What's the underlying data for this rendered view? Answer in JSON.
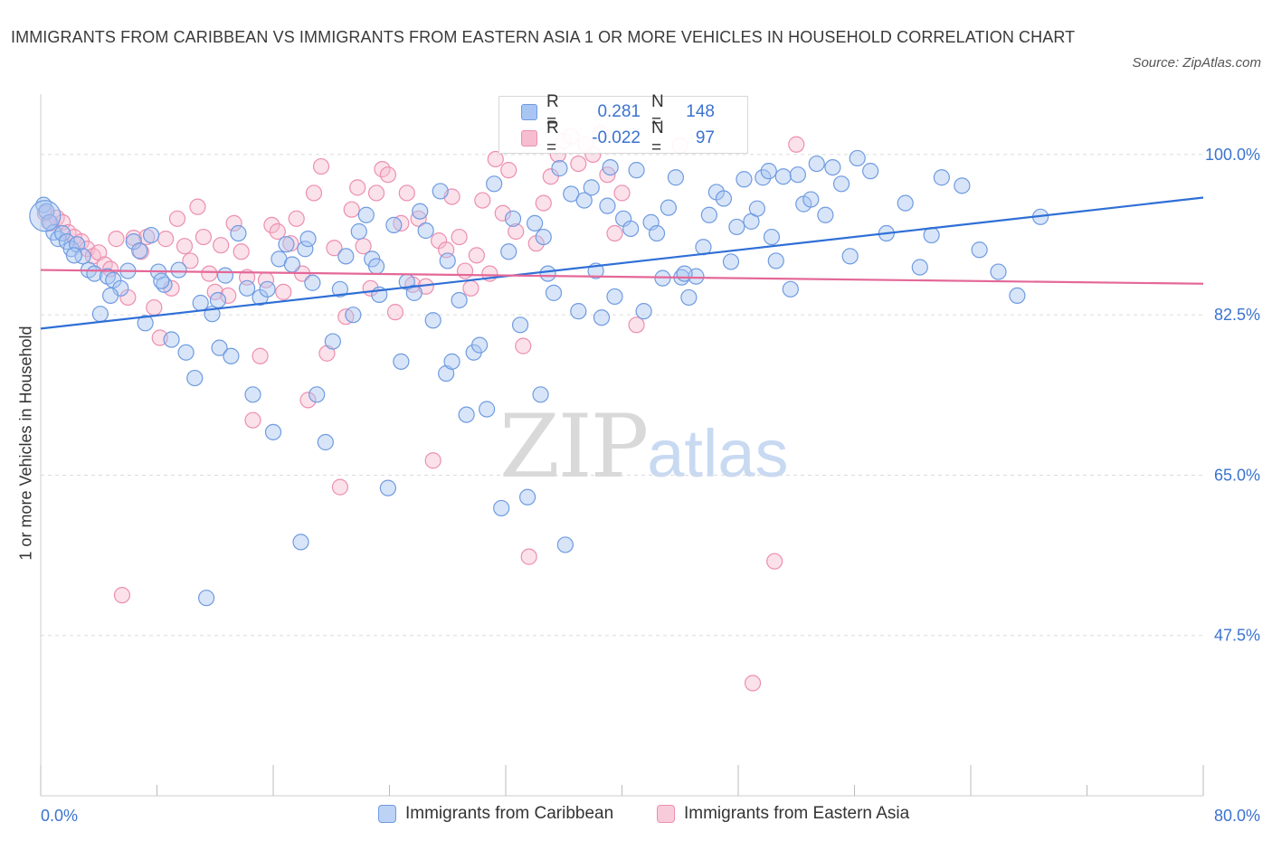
{
  "title": "IMMIGRANTS FROM CARIBBEAN VS IMMIGRANTS FROM EASTERN ASIA 1 OR MORE VEHICLES IN HOUSEHOLD CORRELATION CHART",
  "source": "Source: ZipAtlas.com",
  "watermark": {
    "zip": "ZIP",
    "atlas": "atlas"
  },
  "colors": {
    "blue_fill": "#a9c6f2",
    "blue_stroke": "#6f9be0",
    "blue_line": "#2f6fd6",
    "pink_fill": "#f6bdd0",
    "pink_stroke": "#ec8fb0",
    "pink_line": "#e46898",
    "axis_text": "#3b73cf",
    "grid": "#dcdcdc"
  },
  "legend": [
    {
      "r_label": "R =",
      "r_value": "0.281",
      "n_label": "N =",
      "n_value": "148"
    },
    {
      "r_label": "R =",
      "r_value": "-0.022",
      "n_label": "N =",
      "n_value": "97"
    }
  ],
  "chart_data": {
    "type": "scatter",
    "title": "IMMIGRANTS FROM CARIBBEAN VS IMMIGRANTS FROM EASTERN ASIA 1 OR MORE VEHICLES IN HOUSEHOLD CORRELATION CHART",
    "xlabel": "",
    "ylabel": "1 or more Vehicles in Household",
    "xlim": [
      0,
      80
    ],
    "ylim": [
      30,
      107
    ],
    "x_tick_labels": [
      "0.0%",
      "80.0%"
    ],
    "y_ticks": [
      100,
      82.5,
      65,
      47.5
    ],
    "y_tick_labels": [
      "100.0%",
      "82.5%",
      "65.0%",
      "47.5%"
    ],
    "grid": true,
    "legend_position": "bottom",
    "series": [
      {
        "name": "Immigrants from Caribbean",
        "color": "#a9c6f2",
        "trend": {
          "x": [
            0,
            80
          ],
          "y": [
            81.0,
            95.3
          ]
        },
        "points": [
          [
            0.2,
            94.5
          ],
          [
            0.4,
            93.8
          ],
          [
            0.6,
            92.6
          ],
          [
            0.9,
            91.5
          ],
          [
            1.2,
            90.8
          ],
          [
            1.5,
            91.4
          ],
          [
            1.8,
            90.5
          ],
          [
            2.1,
            89.7
          ],
          [
            2.5,
            90.2
          ],
          [
            2.9,
            88.9
          ],
          [
            3.3,
            87.4
          ],
          [
            3.7,
            87.0
          ],
          [
            4.1,
            82.6
          ],
          [
            4.6,
            86.7
          ],
          [
            5.0,
            86.3
          ],
          [
            5.5,
            85.4
          ],
          [
            6.0,
            87.3
          ],
          [
            6.4,
            90.5
          ],
          [
            6.8,
            89.5
          ],
          [
            7.2,
            81.6
          ],
          [
            7.6,
            91.2
          ],
          [
            8.1,
            87.2
          ],
          [
            8.5,
            85.8
          ],
          [
            9.0,
            79.8
          ],
          [
            9.5,
            87.4
          ],
          [
            10.0,
            78.4
          ],
          [
            10.6,
            75.6
          ],
          [
            11.0,
            83.8
          ],
          [
            11.4,
            51.6
          ],
          [
            11.8,
            82.6
          ],
          [
            12.3,
            78.9
          ],
          [
            12.7,
            86.8
          ],
          [
            13.1,
            78.0
          ],
          [
            13.6,
            91.4
          ],
          [
            14.2,
            85.4
          ],
          [
            14.6,
            73.8
          ],
          [
            15.1,
            84.4
          ],
          [
            15.6,
            85.3
          ],
          [
            16.0,
            69.7
          ],
          [
            16.4,
            88.6
          ],
          [
            16.9,
            90.2
          ],
          [
            17.3,
            88.0
          ],
          [
            17.9,
            57.7
          ],
          [
            18.2,
            89.7
          ],
          [
            18.7,
            86.0
          ],
          [
            19.0,
            73.8
          ],
          [
            19.6,
            68.6
          ],
          [
            20.1,
            79.6
          ],
          [
            20.6,
            85.3
          ],
          [
            21.0,
            88.9
          ],
          [
            21.5,
            82.5
          ],
          [
            21.9,
            91.6
          ],
          [
            22.4,
            93.4
          ],
          [
            22.8,
            88.6
          ],
          [
            23.3,
            84.7
          ],
          [
            23.9,
            63.6
          ],
          [
            24.3,
            92.3
          ],
          [
            24.8,
            77.4
          ],
          [
            25.2,
            86.1
          ],
          [
            25.7,
            84.9
          ],
          [
            26.1,
            93.8
          ],
          [
            26.5,
            91.7
          ],
          [
            27.0,
            81.9
          ],
          [
            27.5,
            96.0
          ],
          [
            27.9,
            76.1
          ],
          [
            28.3,
            77.4
          ],
          [
            28.8,
            84.1
          ],
          [
            29.3,
            71.6
          ],
          [
            29.8,
            78.4
          ],
          [
            30.2,
            79.2
          ],
          [
            30.7,
            72.2
          ],
          [
            31.2,
            96.8
          ],
          [
            31.7,
            61.4
          ],
          [
            32.2,
            89.4
          ],
          [
            32.5,
            93.0
          ],
          [
            33.0,
            81.4
          ],
          [
            33.5,
            62.6
          ],
          [
            34.0,
            92.5
          ],
          [
            34.4,
            73.8
          ],
          [
            34.9,
            87.0
          ],
          [
            35.3,
            84.9
          ],
          [
            35.7,
            98.5
          ],
          [
            36.1,
            57.4
          ],
          [
            36.5,
            95.7
          ],
          [
            37.0,
            82.9
          ],
          [
            37.4,
            95.0
          ],
          [
            37.9,
            96.4
          ],
          [
            38.2,
            87.3
          ],
          [
            38.6,
            82.2
          ],
          [
            39.0,
            94.4
          ],
          [
            39.5,
            84.5
          ],
          [
            40.1,
            93.0
          ],
          [
            40.6,
            91.9
          ],
          [
            41.0,
            98.3
          ],
          [
            41.5,
            82.9
          ],
          [
            42.0,
            92.6
          ],
          [
            42.4,
            91.4
          ],
          [
            42.8,
            86.5
          ],
          [
            43.2,
            94.2
          ],
          [
            43.7,
            97.5
          ],
          [
            44.1,
            86.6
          ],
          [
            44.6,
            84.4
          ],
          [
            45.1,
            86.7
          ],
          [
            45.6,
            89.9
          ],
          [
            46.0,
            93.4
          ],
          [
            46.5,
            95.9
          ],
          [
            47.0,
            95.2
          ],
          [
            47.5,
            88.3
          ],
          [
            47.9,
            92.1
          ],
          [
            48.4,
            97.3
          ],
          [
            48.9,
            92.7
          ],
          [
            49.3,
            94.1
          ],
          [
            49.7,
            97.5
          ],
          [
            50.1,
            98.2
          ],
          [
            50.6,
            88.4
          ],
          [
            51.1,
            97.6
          ],
          [
            51.6,
            85.3
          ],
          [
            52.1,
            97.8
          ],
          [
            52.5,
            94.6
          ],
          [
            53.0,
            95.1
          ],
          [
            53.4,
            99.0
          ],
          [
            54.0,
            93.4
          ],
          [
            54.5,
            98.6
          ],
          [
            55.1,
            96.8
          ],
          [
            55.7,
            88.9
          ],
          [
            56.2,
            99.6
          ],
          [
            57.1,
            98.2
          ],
          [
            58.2,
            91.4
          ],
          [
            59.5,
            94.7
          ],
          [
            61.3,
            91.2
          ],
          [
            62.0,
            97.5
          ],
          [
            63.4,
            96.6
          ],
          [
            64.6,
            89.6
          ],
          [
            65.9,
            87.2
          ],
          [
            67.2,
            84.6
          ],
          [
            68.8,
            93.2
          ],
          [
            60.5,
            87.7
          ],
          [
            50.3,
            91.0
          ],
          [
            44.3,
            87.0
          ],
          [
            39.2,
            98.6
          ],
          [
            34.6,
            91.0
          ],
          [
            28.0,
            88.4
          ],
          [
            23.1,
            87.8
          ],
          [
            18.4,
            90.8
          ],
          [
            12.2,
            84.1
          ],
          [
            8.3,
            86.2
          ],
          [
            4.8,
            84.6
          ],
          [
            2.3,
            89.0
          ]
        ]
      },
      {
        "name": "Immigrants from Eastern Asia",
        "color": "#f6bdd0",
        "trend": {
          "x": [
            0,
            80
          ],
          "y": [
            87.4,
            85.9
          ]
        },
        "points": [
          [
            0.3,
            93.6
          ],
          [
            0.7,
            92.5
          ],
          [
            1.1,
            93.1
          ],
          [
            1.5,
            92.6
          ],
          [
            1.9,
            91.5
          ],
          [
            2.3,
            91.0
          ],
          [
            2.8,
            90.5
          ],
          [
            3.2,
            89.7
          ],
          [
            3.6,
            88.9
          ],
          [
            4.0,
            89.3
          ],
          [
            4.4,
            88.0
          ],
          [
            4.8,
            87.5
          ],
          [
            5.2,
            90.8
          ],
          [
            5.6,
            51.9
          ],
          [
            6.0,
            84.4
          ],
          [
            6.4,
            90.9
          ],
          [
            6.9,
            89.4
          ],
          [
            7.3,
            91.0
          ],
          [
            7.8,
            83.3
          ],
          [
            8.2,
            80.0
          ],
          [
            8.6,
            90.8
          ],
          [
            9.0,
            85.4
          ],
          [
            9.4,
            93.0
          ],
          [
            9.9,
            90.0
          ],
          [
            10.3,
            88.4
          ],
          [
            10.8,
            94.3
          ],
          [
            11.2,
            91.0
          ],
          [
            11.6,
            87.0
          ],
          [
            12.0,
            85.0
          ],
          [
            12.4,
            90.1
          ],
          [
            12.9,
            84.6
          ],
          [
            13.3,
            92.5
          ],
          [
            13.8,
            89.4
          ],
          [
            14.2,
            86.6
          ],
          [
            14.6,
            71.0
          ],
          [
            15.1,
            78.0
          ],
          [
            15.5,
            86.3
          ],
          [
            15.9,
            92.3
          ],
          [
            16.3,
            91.6
          ],
          [
            16.7,
            85.0
          ],
          [
            17.2,
            90.3
          ],
          [
            17.6,
            93.0
          ],
          [
            18.0,
            87.0
          ],
          [
            18.4,
            73.2
          ],
          [
            18.8,
            95.8
          ],
          [
            19.3,
            98.7
          ],
          [
            19.7,
            78.3
          ],
          [
            20.2,
            89.8
          ],
          [
            20.6,
            63.7
          ],
          [
            21.0,
            82.3
          ],
          [
            21.4,
            94.0
          ],
          [
            21.8,
            96.4
          ],
          [
            22.2,
            90.0
          ],
          [
            22.7,
            85.4
          ],
          [
            23.1,
            95.8
          ],
          [
            23.5,
            98.4
          ],
          [
            23.9,
            97.8
          ],
          [
            24.4,
            82.8
          ],
          [
            24.8,
            92.5
          ],
          [
            25.2,
            95.8
          ],
          [
            25.6,
            85.8
          ],
          [
            26.0,
            93.0
          ],
          [
            26.5,
            85.6
          ],
          [
            27.0,
            66.6
          ],
          [
            27.4,
            90.6
          ],
          [
            27.9,
            89.6
          ],
          [
            28.3,
            95.4
          ],
          [
            28.8,
            91.0
          ],
          [
            29.2,
            87.3
          ],
          [
            29.6,
            85.4
          ],
          [
            30.0,
            89.0
          ],
          [
            30.4,
            95.0
          ],
          [
            30.9,
            87.0
          ],
          [
            31.3,
            99.5
          ],
          [
            31.8,
            93.6
          ],
          [
            32.2,
            98.3
          ],
          [
            32.7,
            91.6
          ],
          [
            33.2,
            79.1
          ],
          [
            33.6,
            56.1
          ],
          [
            34.1,
            90.3
          ],
          [
            34.6,
            94.7
          ],
          [
            35.1,
            97.6
          ],
          [
            35.6,
            100.0
          ],
          [
            36.0,
            101.5
          ],
          [
            36.5,
            102.0
          ],
          [
            37.0,
            99.0
          ],
          [
            37.5,
            101.1
          ],
          [
            38.0,
            100.0
          ],
          [
            38.5,
            102.3
          ],
          [
            39.0,
            97.8
          ],
          [
            39.5,
            91.4
          ],
          [
            40.0,
            95.8
          ],
          [
            41.0,
            81.4
          ],
          [
            44.0,
            101.0
          ],
          [
            49.0,
            42.3
          ],
          [
            50.5,
            55.6
          ],
          [
            52.0,
            101.1
          ]
        ]
      }
    ]
  }
}
